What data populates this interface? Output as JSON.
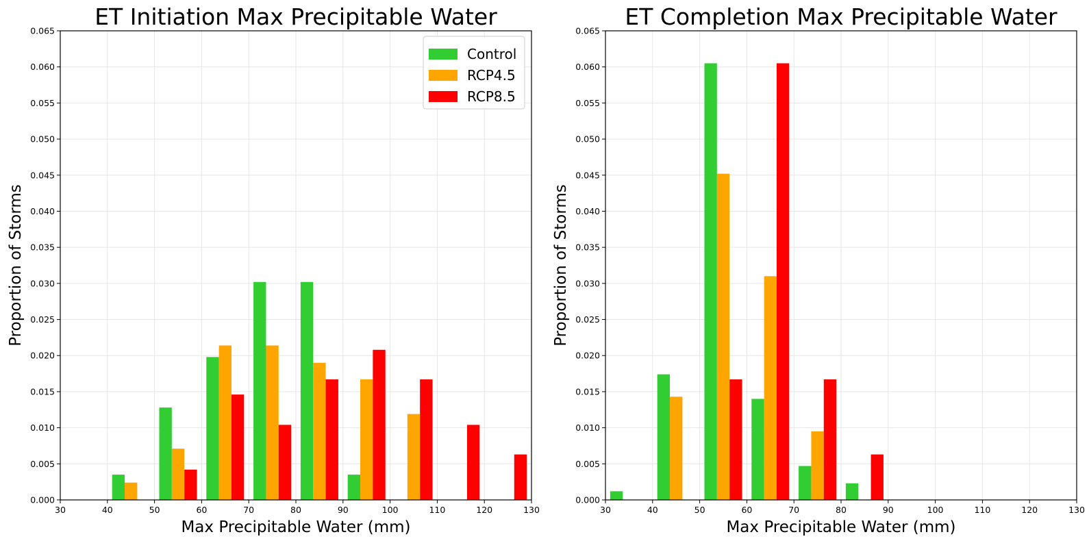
{
  "chart_data": [
    {
      "type": "bar",
      "title": "ET Initiation Max Precipitable Water",
      "xlabel": "Max Precipitable Water (mm)",
      "ylabel": "Proportion of Storms",
      "xlim": [
        30,
        130
      ],
      "ylim": [
        0,
        0.065
      ],
      "xticks": [
        "30",
        "40",
        "50",
        "60",
        "70",
        "80",
        "90",
        "100",
        "110",
        "120",
        "130"
      ],
      "yticks": [
        "0.000",
        "0.005",
        "0.010",
        "0.015",
        "0.020",
        "0.025",
        "0.030",
        "0.035",
        "0.040",
        "0.045",
        "0.050",
        "0.055",
        "0.060",
        "0.065"
      ],
      "grid": true,
      "legend": "top-right",
      "bin_edges": [
        30,
        40,
        50,
        60,
        70,
        80,
        90,
        100,
        110,
        120,
        130
      ],
      "series": [
        {
          "name": "Control",
          "color": "#32cd32",
          "values": [
            0,
            0.0035,
            0.0128,
            0.0198,
            0.0302,
            0.0302,
            0.0035,
            0,
            0,
            0
          ]
        },
        {
          "name": "RCP4.5",
          "color": "#ffa500",
          "values": [
            0,
            0.0024,
            0.0071,
            0.0214,
            0.0214,
            0.019,
            0.0167,
            0.0119,
            0,
            0
          ]
        },
        {
          "name": "RCP8.5",
          "color": "#ff0000",
          "values": [
            0,
            0,
            0.0042,
            0.0146,
            0.0104,
            0.0167,
            0.0208,
            0.0167,
            0.0104,
            0.0063
          ]
        }
      ]
    },
    {
      "type": "bar",
      "title": "ET Completion Max Precipitable Water",
      "xlabel": "Max Precipitable Water (mm)",
      "ylabel": "Proportion of Storms",
      "xlim": [
        30,
        130
      ],
      "ylim": [
        0,
        0.065
      ],
      "xticks": [
        "30",
        "40",
        "50",
        "60",
        "70",
        "80",
        "90",
        "100",
        "110",
        "120",
        "130"
      ],
      "yticks": [
        "0.000",
        "0.005",
        "0.010",
        "0.015",
        "0.020",
        "0.025",
        "0.030",
        "0.035",
        "0.040",
        "0.045",
        "0.050",
        "0.055",
        "0.060",
        "0.065"
      ],
      "grid": true,
      "bin_edges": [
        30,
        40,
        50,
        60,
        70,
        80,
        90,
        100,
        110,
        120,
        130
      ],
      "series": [
        {
          "name": "Control",
          "color": "#32cd32",
          "values": [
            0.0012,
            0.0174,
            0.0605,
            0.014,
            0.0047,
            0.0023,
            0,
            0,
            0,
            0
          ]
        },
        {
          "name": "RCP4.5",
          "color": "#ffa500",
          "values": [
            0,
            0.0143,
            0.0452,
            0.031,
            0.0095,
            0,
            0,
            0,
            0,
            0
          ]
        },
        {
          "name": "RCP8.5",
          "color": "#ff0000",
          "values": [
            0,
            0,
            0.0167,
            0.0605,
            0.0167,
            0.0063,
            0,
            0,
            0,
            0
          ]
        }
      ]
    }
  ]
}
